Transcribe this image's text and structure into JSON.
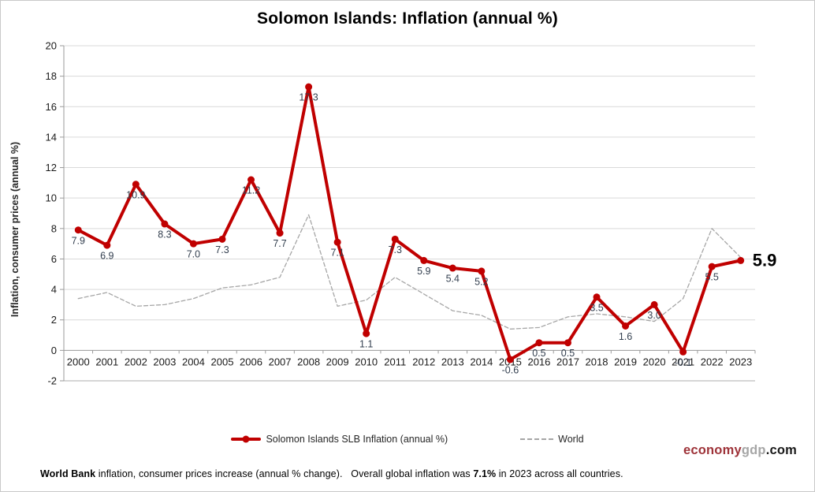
{
  "chart_data": {
    "type": "line",
    "title": "Solomon Islands: Inflation (annual %)",
    "categories": [
      "2000",
      "2001",
      "2002",
      "2003",
      "2004",
      "2005",
      "2006",
      "2007",
      "2008",
      "2009",
      "2010",
      "2011",
      "2012",
      "2013",
      "2014",
      "2015",
      "2016",
      "2017",
      "2018",
      "2019",
      "2020",
      "2021",
      "2022",
      "2023"
    ],
    "series": [
      {
        "name": "Solomon Islands SLB Inflation (annual %)",
        "color": "#C00000",
        "line_style": "solid",
        "line_width": 4,
        "markers": true,
        "labels_visible": true,
        "values": [
          7.9,
          6.9,
          10.9,
          8.3,
          7.0,
          7.3,
          11.2,
          7.7,
          17.3,
          7.1,
          1.1,
          7.3,
          5.9,
          5.4,
          5.2,
          -0.6,
          0.5,
          0.5,
          3.5,
          1.6,
          3.0,
          -0.1,
          5.5,
          5.9
        ]
      },
      {
        "name": "World",
        "color": "#A6A6A6",
        "line_style": "dashed",
        "line_width": 1.3,
        "markers": false,
        "labels_visible": false,
        "values": [
          3.4,
          3.8,
          2.9,
          3.0,
          3.4,
          4.1,
          4.3,
          4.8,
          8.9,
          2.9,
          3.3,
          4.8,
          3.7,
          2.6,
          2.3,
          1.4,
          1.5,
          2.2,
          2.4,
          2.2,
          1.9,
          3.4,
          8.0,
          6.1
        ]
      }
    ],
    "xlabel": "",
    "ylabel": "Inflation, consumer prices (annual %)",
    "ylim": [
      -2,
      20
    ],
    "ytick_step": 2,
    "ytick_labels": [
      "-2",
      "0",
      "2",
      "4",
      "6",
      "8",
      "10",
      "12",
      "14",
      "16",
      "18",
      "20"
    ],
    "grid": true,
    "grid_color": "#D9D9D9",
    "axis_color": "#9A9A9A",
    "data_label_color": "#333F4F",
    "tick_label_color": "#1A1A1A",
    "legend_position": "bottom",
    "end_label": "5.9"
  },
  "footer": {
    "bold1": "World Bank",
    "text1": " inflation, consumer prices increase (annual % change).   Overall global inflation was ",
    "bold2": "7.1%",
    "text2": " in 2023 across all countries."
  },
  "logo": {
    "economy": "economy",
    "gdp": "gdp",
    "com": ".com",
    "colors": {
      "economy": "#9E3339",
      "gdp": "#A6A6A6",
      "com": "#1A1A1A"
    }
  }
}
